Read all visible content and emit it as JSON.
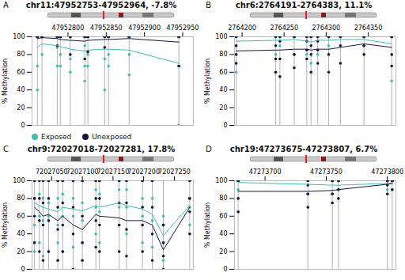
{
  "chart_data": [
    {
      "type": "scatter",
      "panel": "A",
      "title": "chr11:47952753-47952964, -7.8%",
      "ylabel": "% Methylation",
      "xlim": [
        47952753,
        47952964
      ],
      "xticks": [
        47952800,
        47952850,
        47952900,
        47952950
      ],
      "ylim": [
        0,
        100
      ],
      "yticks": [
        0,
        20,
        40,
        60,
        80,
        100
      ],
      "legend": "bottom",
      "x": [
        47952760,
        47952766,
        47952786,
        47952790,
        47952803,
        47952822,
        47952826,
        47952848,
        47952853,
        47952880,
        47952945
      ],
      "series": [
        {
          "name": "Exposed",
          "color": "#3dbfae",
          "values": [
            88,
            92,
            90,
            89,
            86,
            84,
            85,
            86,
            86,
            85,
            70
          ],
          "points": [
            [
              40,
              67,
              100,
              100
            ],
            [
              80,
              100,
              100,
              100
            ],
            [
              67,
              88,
              100,
              100
            ],
            [
              67,
              80,
              100,
              100
            ],
            [
              60,
              75,
              100,
              100
            ],
            [
              50,
              67,
              90,
              100
            ],
            [
              67,
              80,
              100,
              100
            ],
            [
              40,
              75,
              100,
              100
            ],
            [
              67,
              80,
              100,
              100
            ],
            [
              57,
              80,
              100,
              100
            ],
            [
              0,
              0,
              67,
              100
            ]
          ]
        },
        {
          "name": "Unexposed",
          "color": "#15163f",
          "values": [
            98,
            99,
            98,
            97,
            96,
            95,
            96,
            97,
            97,
            98,
            94
          ],
          "points": [
            [
              100,
              100,
              100,
              100
            ],
            [
              100,
              100,
              100,
              100
            ],
            [
              90,
              100,
              100,
              100
            ],
            [
              100,
              100,
              100,
              100
            ],
            [
              80,
              100,
              100,
              100
            ],
            [
              75,
              100,
              100,
              100
            ],
            [
              83,
              100,
              100,
              100
            ],
            [
              88,
              100,
              100,
              100
            ],
            [
              100,
              100,
              100,
              100
            ],
            [
              100,
              100,
              100,
              100
            ],
            [
              67,
              100,
              100,
              100
            ]
          ]
        }
      ]
    },
    {
      "type": "scatter",
      "panel": "B",
      "title": "chr6:2764191-2764383, 11.1%",
      "ylabel": "% Methylation",
      "xlim": [
        2764191,
        2764383
      ],
      "xticks": [
        2764200,
        2764250,
        2764300,
        2764350
      ],
      "ylim": [
        0,
        100
      ],
      "yticks": [
        0,
        20,
        40,
        60,
        80,
        100
      ],
      "x": [
        2764193,
        2764240,
        2764245,
        2764262,
        2764277,
        2764282,
        2764290,
        2764303,
        2764317,
        2764345,
        2764378
      ],
      "series": [
        {
          "name": "Exposed",
          "color": "#3dbfae",
          "values": [
            95,
            96,
            96,
            97,
            95,
            94,
            96,
            96,
            97,
            97,
            92
          ],
          "points": [
            [
              60,
              90,
              100,
              100
            ],
            [
              80,
              100,
              100,
              100
            ],
            [
              90,
              100,
              100,
              100
            ],
            [
              80,
              100,
              100,
              100
            ],
            [
              80,
              100,
              100,
              100
            ],
            [
              70,
              100,
              100,
              100
            ],
            [
              80,
              100,
              100,
              100
            ],
            [
              90,
              100,
              100,
              100
            ],
            [
              100,
              100,
              100,
              100
            ],
            [
              90,
              100,
              100,
              100
            ],
            [
              50,
              100,
              100,
              100
            ]
          ]
        },
        {
          "name": "Unexposed",
          "color": "#15163f",
          "values": [
            84,
            85,
            85,
            86,
            86,
            85,
            86,
            86,
            88,
            92,
            88
          ],
          "points": [
            [
              70,
              80,
              90,
              100
            ],
            [
              60,
              75,
              90,
              100
            ],
            [
              55,
              75,
              95,
              100
            ],
            [
              65,
              80,
              100,
              100
            ],
            [
              75,
              85,
              95,
              100
            ],
            [
              60,
              80,
              90,
              100
            ],
            [
              70,
              85,
              95,
              100
            ],
            [
              60,
              80,
              100,
              100
            ],
            [
              70,
              90,
              100,
              100
            ],
            [
              80,
              90,
              100,
              100
            ],
            [
              67,
              80,
              100,
              100
            ]
          ]
        }
      ]
    },
    {
      "type": "scatter",
      "panel": "C",
      "title": "chr9:72027018-72027281, 17.8%",
      "ylabel": "% Methylation",
      "xlim": [
        72027018,
        72027281
      ],
      "xticks": [
        72027050,
        72027100,
        72027150,
        72027200,
        72027250
      ],
      "ylim": [
        0,
        100
      ],
      "yticks": [
        0,
        20,
        40,
        60,
        80,
        100
      ],
      "x": [
        72027022,
        72027030,
        72027036,
        72027045,
        72027060,
        72027068,
        72027085,
        72027100,
        72027122,
        72027128,
        72027160,
        72027172,
        72027198,
        72027214,
        72027232,
        72027275
      ],
      "series": [
        {
          "name": "Exposed",
          "color": "#3dbfae",
          "values": [
            75,
            72,
            70,
            68,
            65,
            70,
            68,
            66,
            72,
            70,
            75,
            72,
            68,
            62,
            38,
            72
          ],
          "points": [
            [
              20,
              50,
              80,
              100
            ],
            [
              30,
              60,
              85,
              100
            ],
            [
              15,
              55,
              80,
              100
            ],
            [
              20,
              60,
              75,
              100
            ],
            [
              30,
              50,
              80,
              100
            ],
            [
              20,
              60,
              85,
              100
            ],
            [
              25,
              60,
              80,
              100
            ],
            [
              30,
              55,
              75,
              100
            ],
            [
              40,
              70,
              90,
              100
            ],
            [
              30,
              65,
              85,
              100
            ],
            [
              50,
              70,
              90,
              100
            ],
            [
              40,
              70,
              90,
              100
            ],
            [
              30,
              60,
              80,
              100
            ],
            [
              25,
              55,
              80,
              100
            ],
            [
              10,
              30,
              50,
              60
            ],
            [
              50,
              70,
              80,
              100
            ]
          ]
        },
        {
          "name": "Unexposed",
          "color": "#15163f",
          "values": [
            70,
            65,
            60,
            62,
            55,
            60,
            50,
            45,
            62,
            60,
            58,
            55,
            55,
            50,
            22,
            70
          ],
          "points": [
            [
              30,
              60,
              80,
              100
            ],
            [
              20,
              55,
              80,
              100
            ],
            [
              10,
              50,
              75,
              100
            ],
            [
              20,
              55,
              80,
              100
            ],
            [
              10,
              45,
              70,
              100
            ],
            [
              20,
              50,
              75,
              100
            ],
            [
              0,
              40,
              70,
              100
            ],
            [
              10,
              30,
              60,
              100
            ],
            [
              25,
              55,
              80,
              100
            ],
            [
              20,
              50,
              80,
              100
            ],
            [
              20,
              50,
              75,
              100
            ],
            [
              15,
              45,
              75,
              100
            ],
            [
              20,
              50,
              70,
              100
            ],
            [
              10,
              40,
              70,
              100
            ],
            [
              0,
              15,
              30,
              50
            ],
            [
              40,
              65,
              80,
              100
            ]
          ]
        }
      ]
    },
    {
      "type": "scatter",
      "panel": "D",
      "title": "chr19:47273675-47273807, 6.7%",
      "ylabel": "% Methylation",
      "xlim": [
        47273675,
        47273807
      ],
      "xticks": [
        47273700,
        47273750,
        47273800
      ],
      "ylim": [
        0,
        100
      ],
      "yticks": [
        0,
        20,
        40,
        60,
        80,
        100
      ],
      "x": [
        47273678,
        47273735,
        47273755,
        47273760,
        47273800,
        47273804
      ],
      "series": [
        {
          "name": "Exposed",
          "color": "#3dbfae",
          "values": [
            98,
            96,
            95,
            95,
            97,
            97
          ],
          "points": [
            [
              90,
              100,
              100,
              100
            ],
            [
              85,
              100,
              100,
              100
            ],
            [
              85,
              100,
              100,
              100
            ],
            [
              90,
              100,
              100,
              100
            ],
            [
              90,
              100,
              100,
              100
            ],
            [
              90,
              100,
              100,
              100
            ]
          ]
        },
        {
          "name": "Unexposed",
          "color": "#15163f",
          "values": [
            88,
            88,
            89,
            90,
            96,
            97
          ],
          "points": [
            [
              65,
              80,
              100,
              100
            ],
            [
              70,
              85,
              95,
              100
            ],
            [
              75,
              85,
              100,
              100
            ],
            [
              80,
              90,
              100,
              100
            ],
            [
              85,
              95,
              100,
              100
            ],
            [
              90,
              100,
              100,
              100
            ]
          ]
        }
      ]
    }
  ]
}
